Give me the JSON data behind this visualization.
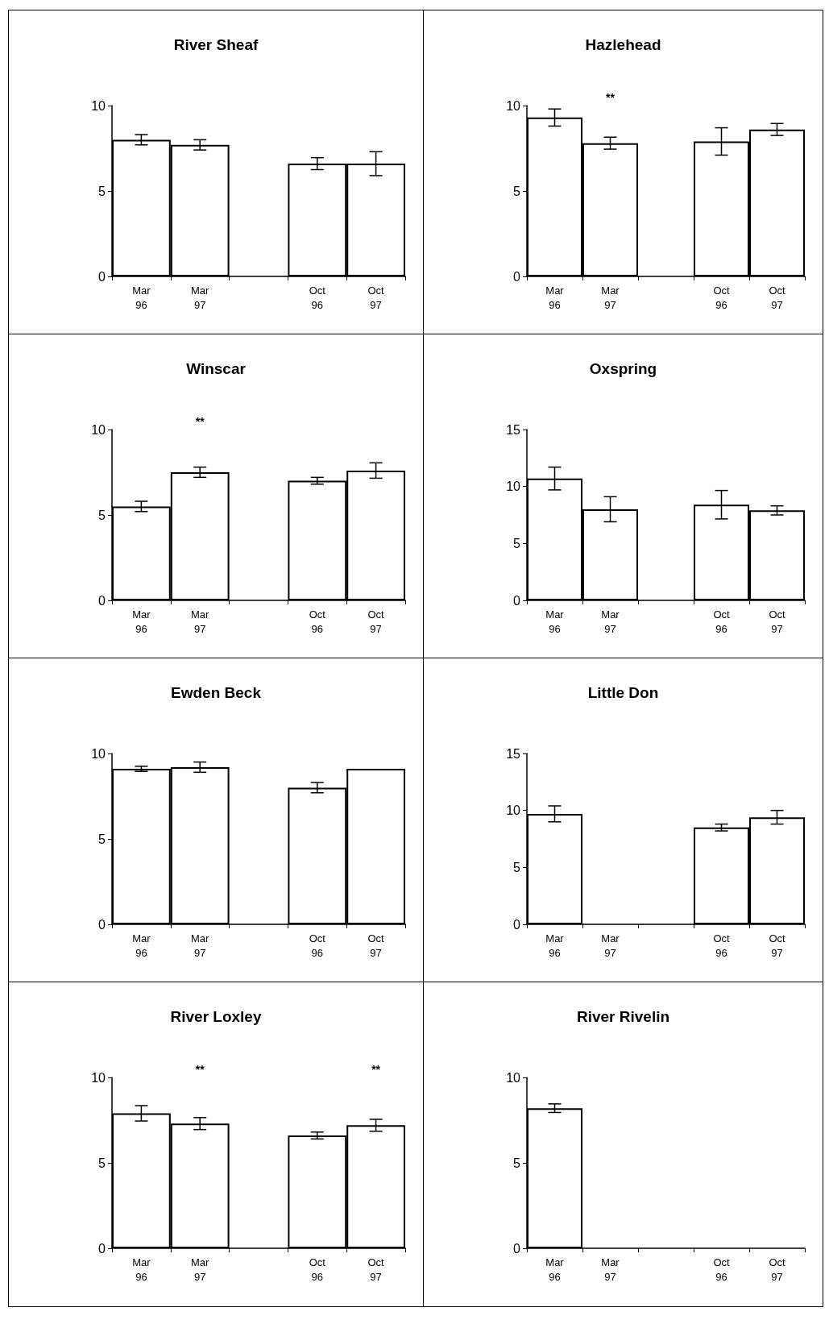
{
  "chart_data": [
    {
      "type": "bar",
      "title": "River Sheaf",
      "categories": [
        "Mar 96",
        "Mar 97",
        null,
        "Oct 96",
        "Oct 97"
      ],
      "ylim": [
        0,
        10
      ],
      "yticks": [
        0,
        5,
        10
      ],
      "series": [
        {
          "color": "#ffffff",
          "values": [
            8.0,
            7.7,
            null,
            6.6,
            6.6
          ],
          "errors": [
            0.3,
            0.3,
            null,
            0.35,
            0.7
          ]
        }
      ]
    },
    {
      "type": "bar",
      "title": "Hazlehead",
      "categories": [
        "Mar 96",
        "Mar 97",
        null,
        "Oct 96",
        "Oct 97"
      ],
      "ylim": [
        0,
        10
      ],
      "yticks": [
        0,
        5,
        10
      ],
      "annotations": [
        "**"
      ],
      "series": [
        {
          "color": "#ffffff",
          "values": [
            9.3,
            7.8,
            null,
            7.9,
            8.6
          ],
          "errors": [
            0.5,
            0.35,
            null,
            0.8,
            0.35
          ]
        }
      ]
    },
    {
      "type": "bar",
      "title": "Winscar",
      "categories": [
        "Mar 96",
        "Mar 97",
        null,
        "Oct 96",
        "Oct 97"
      ],
      "ylim": [
        0,
        10
      ],
      "yticks": [
        0,
        5,
        10
      ],
      "annotations": [
        "**"
      ],
      "series": [
        {
          "color": "#ffffff",
          "values": [
            5.5,
            7.5,
            null,
            7.0,
            7.6
          ],
          "errors": [
            0.3,
            0.3,
            null,
            0.2,
            0.45
          ]
        }
      ]
    },
    {
      "type": "bar",
      "title": "Oxspring",
      "categories": [
        "Mar 96",
        "Mar 97",
        null,
        "Oct 96",
        "Oct 97"
      ],
      "ylim": [
        0,
        15
      ],
      "yticks": [
        0,
        5,
        10,
        15
      ],
      "series": [
        {
          "color": "#ffffff",
          "values": [
            10.7,
            8.0,
            null,
            8.4,
            7.9
          ],
          "errors": [
            1.0,
            1.1,
            null,
            1.25,
            0.4
          ]
        }
      ]
    },
    {
      "type": "bar",
      "title": "Ewden Beck",
      "categories": [
        "Mar 96",
        "Mar 97",
        null,
        "Oct 96",
        "Oct 97"
      ],
      "ylim": [
        0,
        10
      ],
      "yticks": [
        0,
        5,
        10
      ],
      "series": [
        {
          "color": "#ffffff",
          "values": [
            9.1,
            9.2,
            null,
            8.0,
            9.1
          ],
          "errors": [
            0.15,
            0.3,
            null,
            0.3,
            null
          ]
        }
      ]
    },
    {
      "type": "bar",
      "title": "Little Don",
      "categories": [
        "Mar 96",
        "Mar 97",
        null,
        "Oct 96",
        "Oct 97"
      ],
      "ylim": [
        0,
        15
      ],
      "yticks": [
        0,
        5,
        10,
        15
      ],
      "series": [
        {
          "color": "#ffffff",
          "values": [
            9.7,
            null,
            null,
            8.5,
            9.4
          ],
          "errors": [
            0.7,
            null,
            null,
            0.3,
            0.6
          ]
        }
      ]
    },
    {
      "type": "bar",
      "title": "River Loxley",
      "categories": [
        "Mar 96",
        "Mar 97",
        null,
        "Oct 96",
        "Oct 97"
      ],
      "ylim": [
        0,
        10
      ],
      "yticks": [
        0,
        5,
        10
      ],
      "annotations": [
        "**",
        "**"
      ],
      "series": [
        {
          "color": "#ffffff",
          "values": [
            7.9,
            7.3,
            null,
            6.6,
            7.2
          ],
          "errors": [
            0.45,
            0.35,
            null,
            0.2,
            0.35
          ]
        }
      ]
    },
    {
      "type": "bar",
      "title": "River Rivelin",
      "categories": [
        "Mar 96",
        "Mar 97",
        null,
        "Oct 96",
        "Oct 97"
      ],
      "ylim": [
        0,
        10
      ],
      "yticks": [
        0,
        5,
        10
      ],
      "series": [
        {
          "color": "#ffffff",
          "values": [
            8.2,
            null,
            null,
            null,
            null
          ],
          "errors": [
            0.25,
            null,
            null,
            null,
            null
          ]
        }
      ]
    }
  ]
}
